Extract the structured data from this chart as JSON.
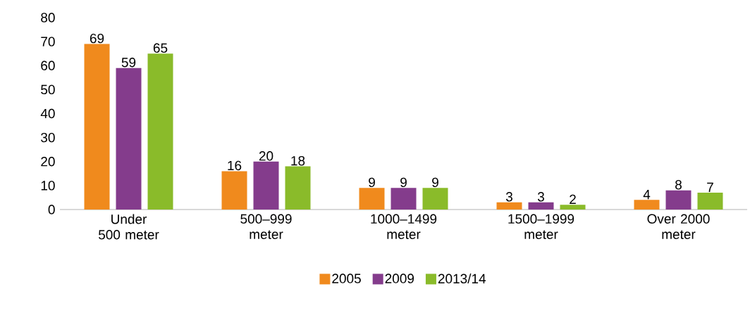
{
  "chart_data": {
    "type": "bar",
    "categories": [
      "Under 500 meter",
      "500–999 meter",
      "1000–1499 meter",
      "1500–1999 meter",
      "Over 2000 meter"
    ],
    "series": [
      {
        "name": "2005",
        "color": "#f08a1d",
        "values": [
          69,
          16,
          9,
          3,
          4
        ]
      },
      {
        "name": "2009",
        "color": "#843c8c",
        "values": [
          59,
          20,
          9,
          3,
          8
        ]
      },
      {
        "name": "2013/14",
        "color": "#8abb2a",
        "values": [
          65,
          18,
          9,
          2,
          7
        ]
      }
    ],
    "ylim": [
      0,
      80
    ],
    "yticks": [
      0,
      10,
      20,
      30,
      40,
      50,
      60,
      70,
      80
    ],
    "data_labels": true,
    "legend": "bottom"
  }
}
